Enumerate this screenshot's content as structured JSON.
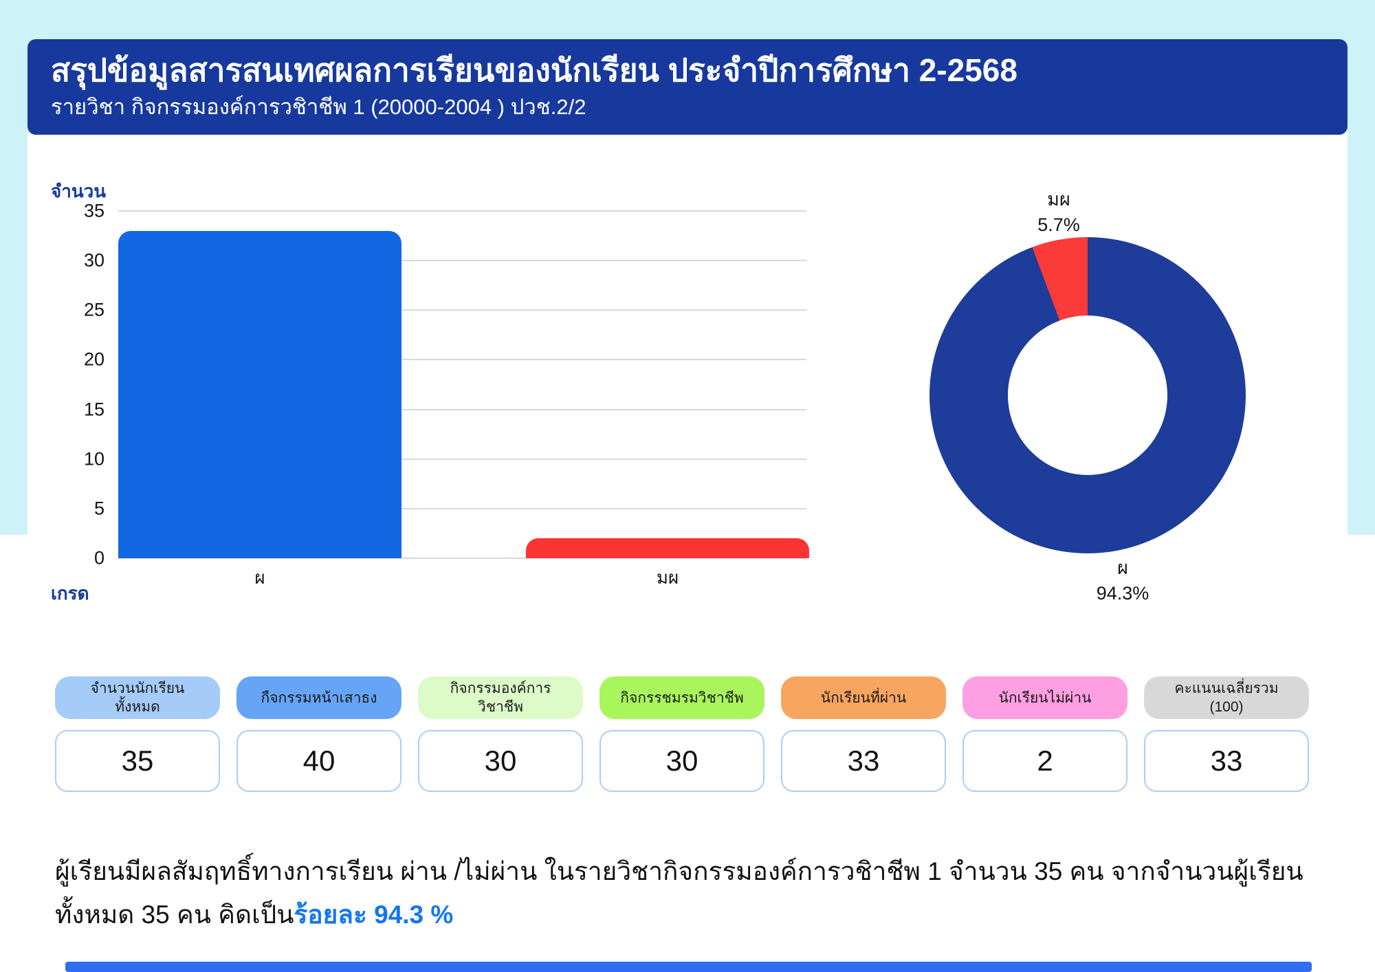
{
  "page": {
    "bg_cyan": "#cdf3f8",
    "header_navy": "#17399e",
    "grid_color": "#d9d9d9",
    "value_box_border": "#abcdf6",
    "summary_highlight_color": "#1376f3",
    "footer_strip_color": "#2f6ef0"
  },
  "header": {
    "title": "สรุปข้อมูลสารสนเทศผลการเรียนของนักเรียน ประจำปีการศึกษา 2-2568",
    "subtitle": "รายวิชา กิจกรรมองค์การวชิาชีพ 1 (20000-2004 ) ปวช.2/2"
  },
  "chart_data": [
    {
      "type": "bar",
      "title": "",
      "categories": [
        "ผ",
        "มผ"
      ],
      "values": [
        33,
        2
      ],
      "xlabel": "เกรด",
      "ylabel": "จำนวน",
      "ylim": [
        0,
        35
      ],
      "yticks": [
        0,
        5,
        10,
        15,
        20,
        25,
        30,
        35
      ],
      "grid": true,
      "colors": [
        "#1267e2",
        "#fb3333"
      ]
    },
    {
      "type": "pie",
      "subtype": "donut",
      "labels": [
        "ผ",
        "มผ"
      ],
      "values": [
        94.3,
        5.7
      ],
      "value_labels": [
        "94.3%",
        "5.7%"
      ],
      "unit": "%",
      "colors": [
        "#1e3c99",
        "#fb3a3a"
      ],
      "label_top": "มผ\n5.7%",
      "label_bottom": "ผ\n94.3%"
    }
  ],
  "cards": [
    {
      "label": "จำนวนนักเรียน\nทั้งหมด",
      "value": "35",
      "color": "#a5cbf8"
    },
    {
      "label": "กืจกรรมหน้าเสาธง",
      "value": "40",
      "color": "#66a4f6"
    },
    {
      "label": "กิจกรรมองค์การ\nวิชาชีพ",
      "value": "30",
      "color": "#ddfbc9"
    },
    {
      "label": "กิจกรรชมรมวิชาชีพ",
      "value": "30",
      "color": "#a9f55c"
    },
    {
      "label": "นักเรียนที่ผ่าน",
      "value": "33",
      "color": "#f7a55f"
    },
    {
      "label": "นักเรียนไม่ผ่าน",
      "value": "2",
      "color": "#fe9fe2"
    },
    {
      "label": "คะแนนเฉลี่ยรวม\n(100)",
      "value": "33",
      "color": "#d8d8d8"
    }
  ],
  "summary": {
    "text_before": "ผู้เรียนมีผลสัมฤทธิ์ทางการเรียน ผ่าน /ไม่ผ่าน  ในรายวิชากิจกรรมองค์การวชิาชีพ 1 จำนวน 35 คน จากจำนวนผู้เรียนทั้งหมด 35 คน คิดเป็น",
    "highlight": "ร้อยละ 94.3 %"
  }
}
